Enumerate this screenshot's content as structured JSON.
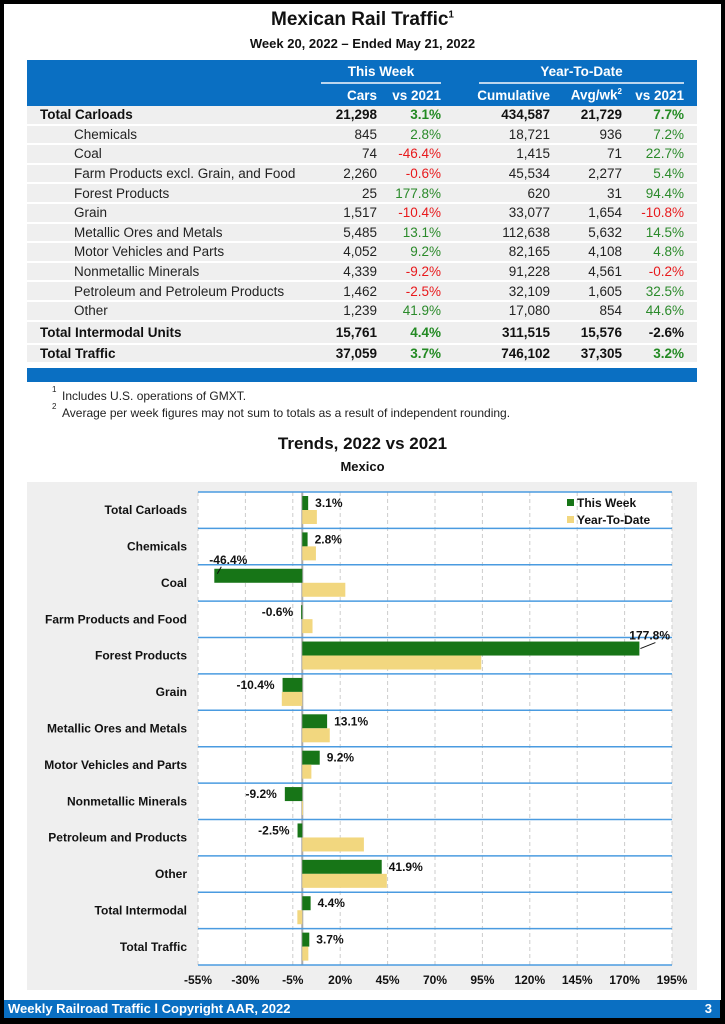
{
  "header": {
    "title": "Mexican Rail Traffic",
    "title_sup": "1",
    "subtitle": "Week 20, 2022 – Ended May 21, 2022"
  },
  "table": {
    "group_this_week": "This Week",
    "group_ytd": "Year-To-Date",
    "columns": [
      "Cars",
      "vs 2021",
      "Cumulative",
      "Avg/wk",
      "vs 2021"
    ],
    "avg_sup": "2",
    "rows": [
      {
        "label": "Total Carloads",
        "total": true,
        "cars": "21,298",
        "vs": "3.1%",
        "cum": "434,587",
        "avg": "21,729",
        "ytdvs": "7.7%"
      },
      {
        "label": "Chemicals",
        "cars": "845",
        "vs": "2.8%",
        "cum": "18,721",
        "avg": "936",
        "ytdvs": "7.2%"
      },
      {
        "label": "Coal",
        "cars": "74",
        "vs": "-46.4%",
        "cum": "1,415",
        "avg": "71",
        "ytdvs": "22.7%"
      },
      {
        "label": "Farm Products excl. Grain, and Food",
        "cars": "2,260",
        "vs": "-0.6%",
        "cum": "45,534",
        "avg": "2,277",
        "ytdvs": "5.4%"
      },
      {
        "label": "Forest Products",
        "cars": "25",
        "vs": "177.8%",
        "cum": "620",
        "avg": "31",
        "ytdvs": "94.4%"
      },
      {
        "label": "Grain",
        "cars": "1,517",
        "vs": "-10.4%",
        "cum": "33,077",
        "avg": "1,654",
        "ytdvs": "-10.8%"
      },
      {
        "label": "Metallic Ores and Metals",
        "cars": "5,485",
        "vs": "13.1%",
        "cum": "112,638",
        "avg": "5,632",
        "ytdvs": "14.5%"
      },
      {
        "label": "Motor Vehicles and Parts",
        "cars": "4,052",
        "vs": "9.2%",
        "cum": "82,165",
        "avg": "4,108",
        "ytdvs": "4.8%"
      },
      {
        "label": "Nonmetallic Minerals",
        "cars": "4,339",
        "vs": "-9.2%",
        "cum": "91,228",
        "avg": "4,561",
        "ytdvs": "-0.2%"
      },
      {
        "label": "Petroleum and Petroleum Products",
        "cars": "1,462",
        "vs": "-2.5%",
        "cum": "32,109",
        "avg": "1,605",
        "ytdvs": "32.5%"
      },
      {
        "label": "Other",
        "cars": "1,239",
        "vs": "41.9%",
        "cum": "17,080",
        "avg": "854",
        "ytdvs": "44.6%"
      },
      {
        "label": "Total Intermodal Units",
        "total": true,
        "cars": "15,761",
        "vs": "4.4%",
        "cum": "311,515",
        "avg": "15,576",
        "ytdvs": "-2.6%"
      },
      {
        "label": "Total Traffic",
        "total": true,
        "cars": "37,059",
        "vs": "3.7%",
        "cum": "746,102",
        "avg": "37,305",
        "ytdvs": "3.2%"
      }
    ]
  },
  "footnotes": [
    {
      "sup": "1",
      "text": "Includes U.S. operations of GMXT."
    },
    {
      "sup": "2",
      "text": "Average per week figures may not sum to totals as a result of independent rounding."
    }
  ],
  "chart_data": {
    "type": "bar",
    "orientation": "horizontal",
    "title": "Trends, 2022 vs 2021",
    "subtitle": "Mexico",
    "categories": [
      "Total Carloads",
      "Chemicals",
      "Coal",
      "Farm Products and Food",
      "Forest Products",
      "Grain",
      "Metallic Ores and Metals",
      "Motor Vehicles and Parts",
      "Nonmetallic Minerals",
      "Petroleum and Products",
      "Other",
      "Total Intermodal",
      "Total Traffic"
    ],
    "series": [
      {
        "name": "This Week",
        "color": "#177517",
        "values": [
          3.1,
          2.8,
          -46.4,
          -0.6,
          177.8,
          -10.4,
          13.1,
          9.2,
          -9.2,
          -2.5,
          41.9,
          4.4,
          3.7
        ],
        "labels": [
          "3.1%",
          "2.8%",
          "-46.4%",
          "-0.6%",
          "177.8%",
          "-10.4%",
          "13.1%",
          "9.2%",
          "-9.2%",
          "-2.5%",
          "41.9%",
          "4.4%",
          "3.7%"
        ]
      },
      {
        "name": "Year-To-Date",
        "color": "#f2d77f",
        "values": [
          7.7,
          7.2,
          22.7,
          5.4,
          94.4,
          -10.8,
          14.5,
          4.8,
          -0.2,
          32.5,
          44.6,
          -2.6,
          3.2
        ]
      }
    ],
    "xlim": [
      -55,
      195
    ],
    "xticks": [
      "-55%",
      "-30%",
      "-5%",
      "20%",
      "45%",
      "70%",
      "95%",
      "120%",
      "145%",
      "170%",
      "195%"
    ],
    "grid": true,
    "legend": "top-right"
  },
  "footer": {
    "left": "Weekly Railroad Traffic l Copyright AAR, 2022",
    "page": "3"
  }
}
